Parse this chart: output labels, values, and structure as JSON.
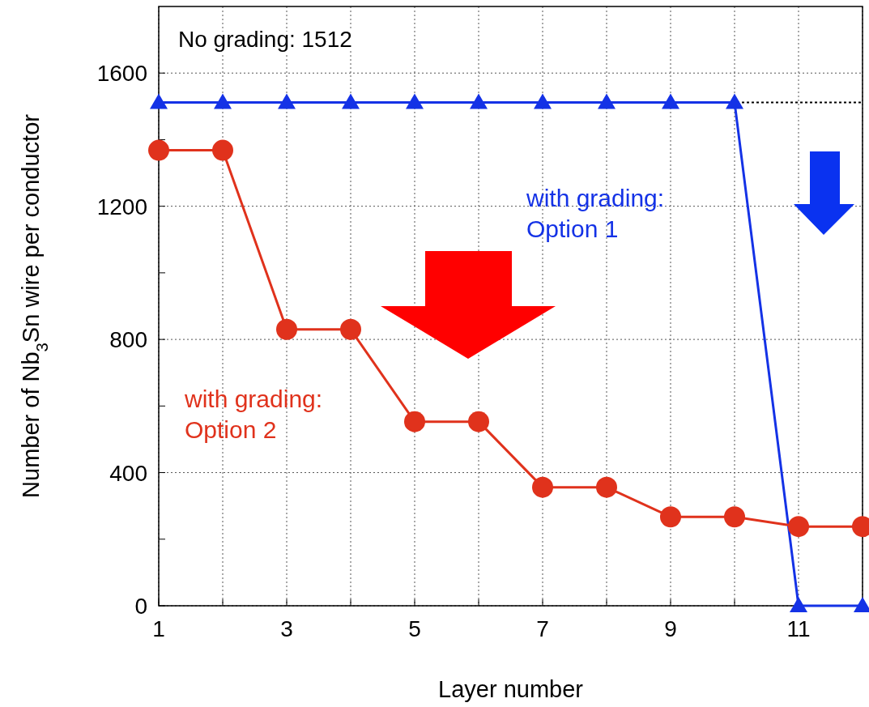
{
  "chart_data": {
    "type": "line",
    "xlabel": "Layer number",
    "ylabel": "Number of Nb$_{3}$Sn wire per conductor",
    "x": [
      1,
      2,
      3,
      4,
      5,
      6,
      7,
      8,
      9,
      10,
      11,
      12
    ],
    "series": [
      {
        "name": "with grading: Option 1",
        "color": "#1432e6",
        "marker": "triangle",
        "values": [
          1512,
          1512,
          1512,
          1512,
          1512,
          1512,
          1512,
          1512,
          1512,
          1512,
          0,
          0
        ]
      },
      {
        "name": "with grading: Option 2",
        "color": "#e0321c",
        "marker": "circle",
        "values": [
          1368,
          1368,
          830,
          830,
          553,
          553,
          356,
          356,
          267,
          267,
          238,
          238
        ]
      }
    ],
    "xlim": [
      1,
      12
    ],
    "xticks": [
      1,
      {
        "value": 2,
        "label": null
      },
      3,
      {
        "value": 4,
        "label": null
      },
      5,
      {
        "value": 6,
        "label": null
      },
      7,
      {
        "value": 8,
        "label": null
      },
      9,
      {
        "value": 10,
        "label": null
      },
      11,
      {
        "value": 12,
        "label": null
      }
    ],
    "ylim": [
      0,
      1800
    ],
    "yticks": [
      0,
      {
        "value": 200,
        "label": null
      },
      400,
      {
        "value": 600,
        "label": null
      },
      800,
      {
        "value": 1000,
        "label": null
      },
      1200,
      {
        "value": 1400,
        "label": null
      },
      1600
    ],
    "grid": true,
    "ref_lines": [
      {
        "axis": "y",
        "value": 1512,
        "label": "No grading: 1512",
        "color": "#000000",
        "line_style": "dotted"
      }
    ]
  }
}
